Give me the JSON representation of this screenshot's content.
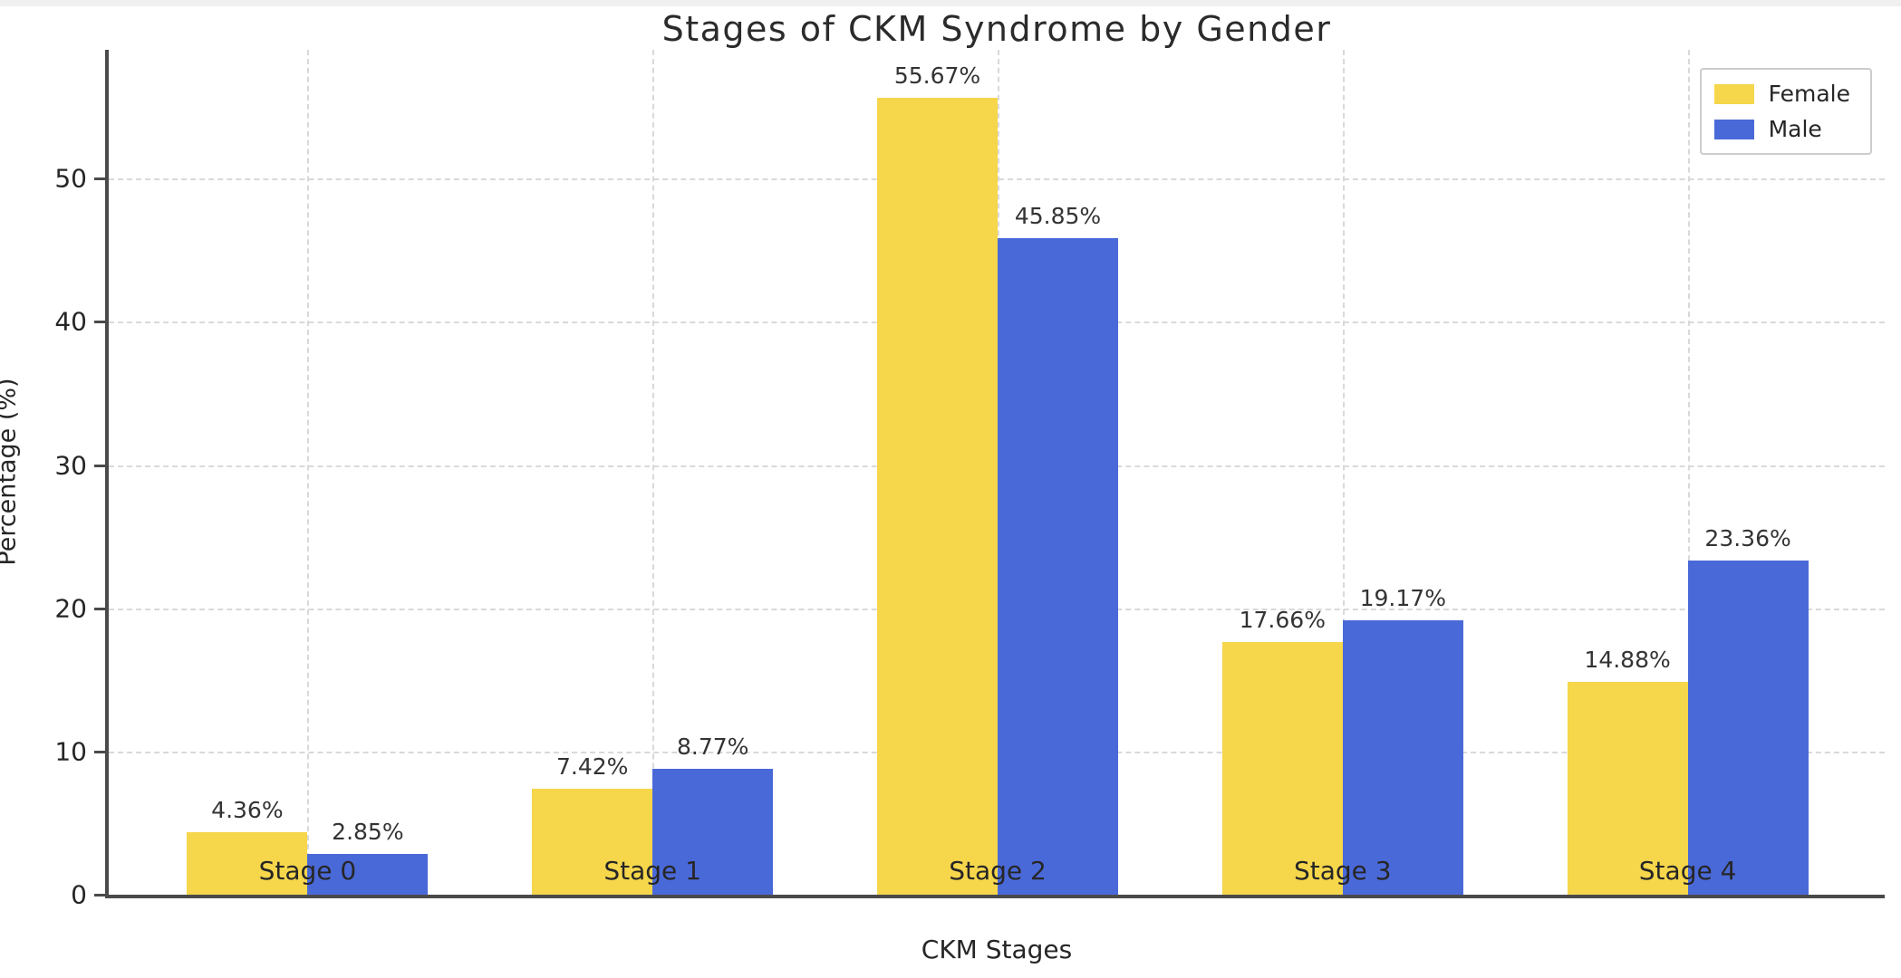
{
  "title": "Stages of CKM Syndrome by Gender",
  "chart_data": {
    "type": "bar",
    "title": "Stages of CKM Syndrome by Gender",
    "categories": [
      "Stage 0",
      "Stage 1",
      "Stage 2",
      "Stage 3",
      "Stage 4"
    ],
    "series": [
      {
        "name": "Female",
        "color": "#F6D64B",
        "values": [
          4.36,
          7.42,
          55.67,
          17.66,
          14.88
        ],
        "labels": [
          "4.36%",
          "7.42%",
          "55.67%",
          "17.66%",
          "14.88%"
        ]
      },
      {
        "name": "Male",
        "color": "#4A69D8",
        "values": [
          2.85,
          8.77,
          45.85,
          19.17,
          23.36
        ],
        "labels": [
          "2.85%",
          "8.77%",
          "45.85%",
          "19.17%",
          "23.36%"
        ]
      }
    ],
    "xlabel": "CKM Stages",
    "ylabel": "Percentage (%)",
    "yticks": [
      0,
      10,
      20,
      30,
      40,
      50
    ],
    "ylim": [
      0,
      59
    ],
    "grid": "dashed-both-axes",
    "legend_position": "upper-right",
    "legend_entries": [
      "Female",
      "Male"
    ]
  },
  "colors": {
    "female": "#F6D64B",
    "male": "#4A69D8",
    "spine": "#4a4a4a",
    "grid": "#d9d9d9",
    "text": "#262626"
  }
}
